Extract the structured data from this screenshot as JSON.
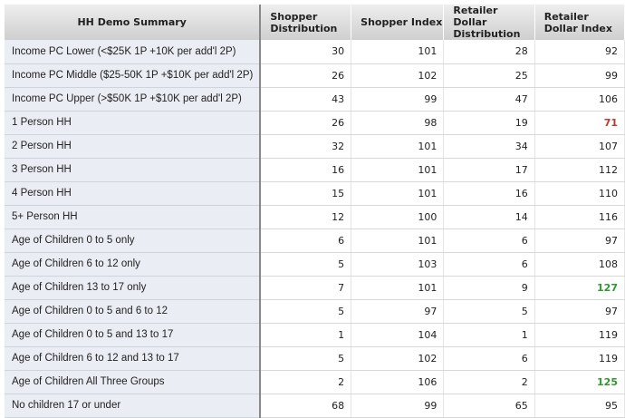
{
  "table": {
    "headers": [
      "HH Demo Summary",
      "Shopper Distribution",
      "Shopper Index",
      "Retailer Dollar Distribution",
      "Retailer Dollar Index"
    ],
    "highlight_colors": {
      "low": "#c0392b",
      "high": "#2e9a2e"
    },
    "rows": [
      {
        "label": "Income PC Lower (<$25K 1P +10K per add'l 2P)",
        "values": [
          "30",
          "101",
          "28",
          "92"
        ],
        "flag": ""
      },
      {
        "label": "Income PC Middle ($25-50K 1P +$10K per add'l 2P)",
        "values": [
          "26",
          "102",
          "25",
          "99"
        ],
        "flag": ""
      },
      {
        "label": "Income PC Upper (>$50K 1P +$10K per add'l 2P)",
        "values": [
          "43",
          "99",
          "47",
          "106"
        ],
        "flag": ""
      },
      {
        "label": "1 Person HH",
        "values": [
          "26",
          "98",
          "19",
          "71"
        ],
        "flag": "red"
      },
      {
        "label": "2 Person HH",
        "values": [
          "32",
          "101",
          "34",
          "107"
        ],
        "flag": ""
      },
      {
        "label": "3 Person HH",
        "values": [
          "16",
          "101",
          "17",
          "112"
        ],
        "flag": ""
      },
      {
        "label": "4 Person HH",
        "values": [
          "15",
          "101",
          "16",
          "110"
        ],
        "flag": ""
      },
      {
        "label": "5+ Person HH",
        "values": [
          "12",
          "100",
          "14",
          "116"
        ],
        "flag": ""
      },
      {
        "label": "Age of Children 0 to 5 only",
        "values": [
          "6",
          "101",
          "6",
          "97"
        ],
        "flag": ""
      },
      {
        "label": "Age of Children 6 to 12 only",
        "values": [
          "5",
          "103",
          "6",
          "108"
        ],
        "flag": ""
      },
      {
        "label": "Age of Children 13 to 17 only",
        "values": [
          "7",
          "101",
          "9",
          "127"
        ],
        "flag": "green"
      },
      {
        "label": "Age of Children 0 to 5 and 6 to 12",
        "values": [
          "5",
          "97",
          "5",
          "97"
        ],
        "flag": ""
      },
      {
        "label": "Age of Children 0 to 5 and 13 to 17",
        "values": [
          "1",
          "104",
          "1",
          "119"
        ],
        "flag": ""
      },
      {
        "label": "Age of Children 6 to 12 and 13 to 17",
        "values": [
          "5",
          "102",
          "6",
          "119"
        ],
        "flag": ""
      },
      {
        "label": "Age of Children All Three Groups",
        "values": [
          "2",
          "106",
          "2",
          "125"
        ],
        "flag": "green"
      },
      {
        "label": "No children 17 or under",
        "values": [
          "68",
          "99",
          "65",
          "95"
        ],
        "flag": ""
      }
    ]
  }
}
